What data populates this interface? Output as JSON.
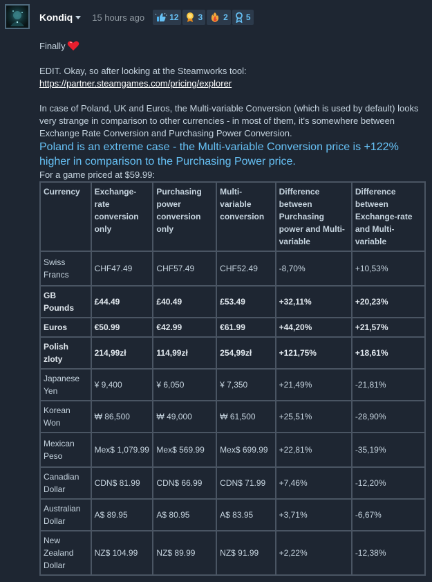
{
  "author": {
    "name": "Kondiq",
    "time": "15 hours ago"
  },
  "awards": [
    {
      "icon": "thumbs-up-award-icon",
      "count": "12"
    },
    {
      "icon": "golden-trophy-award-icon",
      "count": "3"
    },
    {
      "icon": "fire-heart-award-icon",
      "count": "2"
    },
    {
      "icon": "ribbon-award-icon",
      "count": "5"
    }
  ],
  "content": {
    "line1": "Finally",
    "edit_intro": "EDIT. Okay, so after looking at the Steamworks tool:",
    "link": "https://partner.steamgames.com/pricing/explorer",
    "paragraph": "In case of Poland, UK and Euros, the Multi-variable Conversion (which is used by default) looks very strange in comparison to other currencies - in most of them, it's somewhere between Exchange Rate Conversion and Purchasing Power Conversion.",
    "highlight": "Poland is an extreme case - the Multi-variable Conversion price is +122% higher in comparison to the Purchasing Power price.",
    "caption": "For a game priced at $59.99:"
  },
  "table": {
    "headers": [
      "Currency",
      "Exchange-rate conversion only",
      "Purchasing power conversion only",
      "Multi-variable conversion",
      "Difference between Purchasing power and Multi-variable",
      "Difference between Exchange-rate and Multi-variable"
    ],
    "rows": [
      [
        "Swiss Francs",
        "CHF47.49",
        "CHF57.49",
        "CHF52.49",
        "-8,70%",
        "+10,53%"
      ],
      [
        "GB Pounds",
        "£44.49",
        "£40.49",
        "£53.49",
        "+32,11%",
        "+20,23%"
      ],
      [
        "Euros",
        "€50.99",
        "€42.99",
        "€61.99",
        "+44,20%",
        "+21,57%"
      ],
      [
        "Polish zloty",
        "214,99zł",
        "114,99zł",
        "254,99zł",
        "+121,75%",
        "+18,61%"
      ],
      [
        "Japanese Yen",
        "¥ 9,400",
        "¥ 6,050",
        "¥ 7,350",
        "+21,49%",
        "-21,81%"
      ],
      [
        "Korean Won",
        "₩ 86,500",
        "₩ 49,000",
        "₩ 61,500",
        "+25,51%",
        "-28,90%"
      ],
      [
        "Mexican Peso",
        "Mex$ 1,079.99",
        "Mex$ 569.99",
        "Mex$ 699.99",
        "+22,81%",
        "-35,19%"
      ],
      [
        "Canadian Dollar",
        "CDN$ 81.99",
        "CDN$ 66.99",
        "CDN$ 71.99",
        "+7,46%",
        "-12,20%"
      ],
      [
        "Australian Dollar",
        "A$ 89.95",
        "A$ 80.95",
        "A$ 83.95",
        "+3,71%",
        "-6,67%"
      ],
      [
        "New Zealand Dollar",
        "NZ$ 104.99",
        "NZ$ 89.99",
        "NZ$ 91.99",
        "+2,22%",
        "-12,38%"
      ]
    ],
    "bold_rows": [
      1,
      2,
      3
    ]
  },
  "colors": {
    "background": "#1e2632",
    "accent": "#66c0f4",
    "text": "#c6d4df",
    "border": "#4a5563"
  }
}
